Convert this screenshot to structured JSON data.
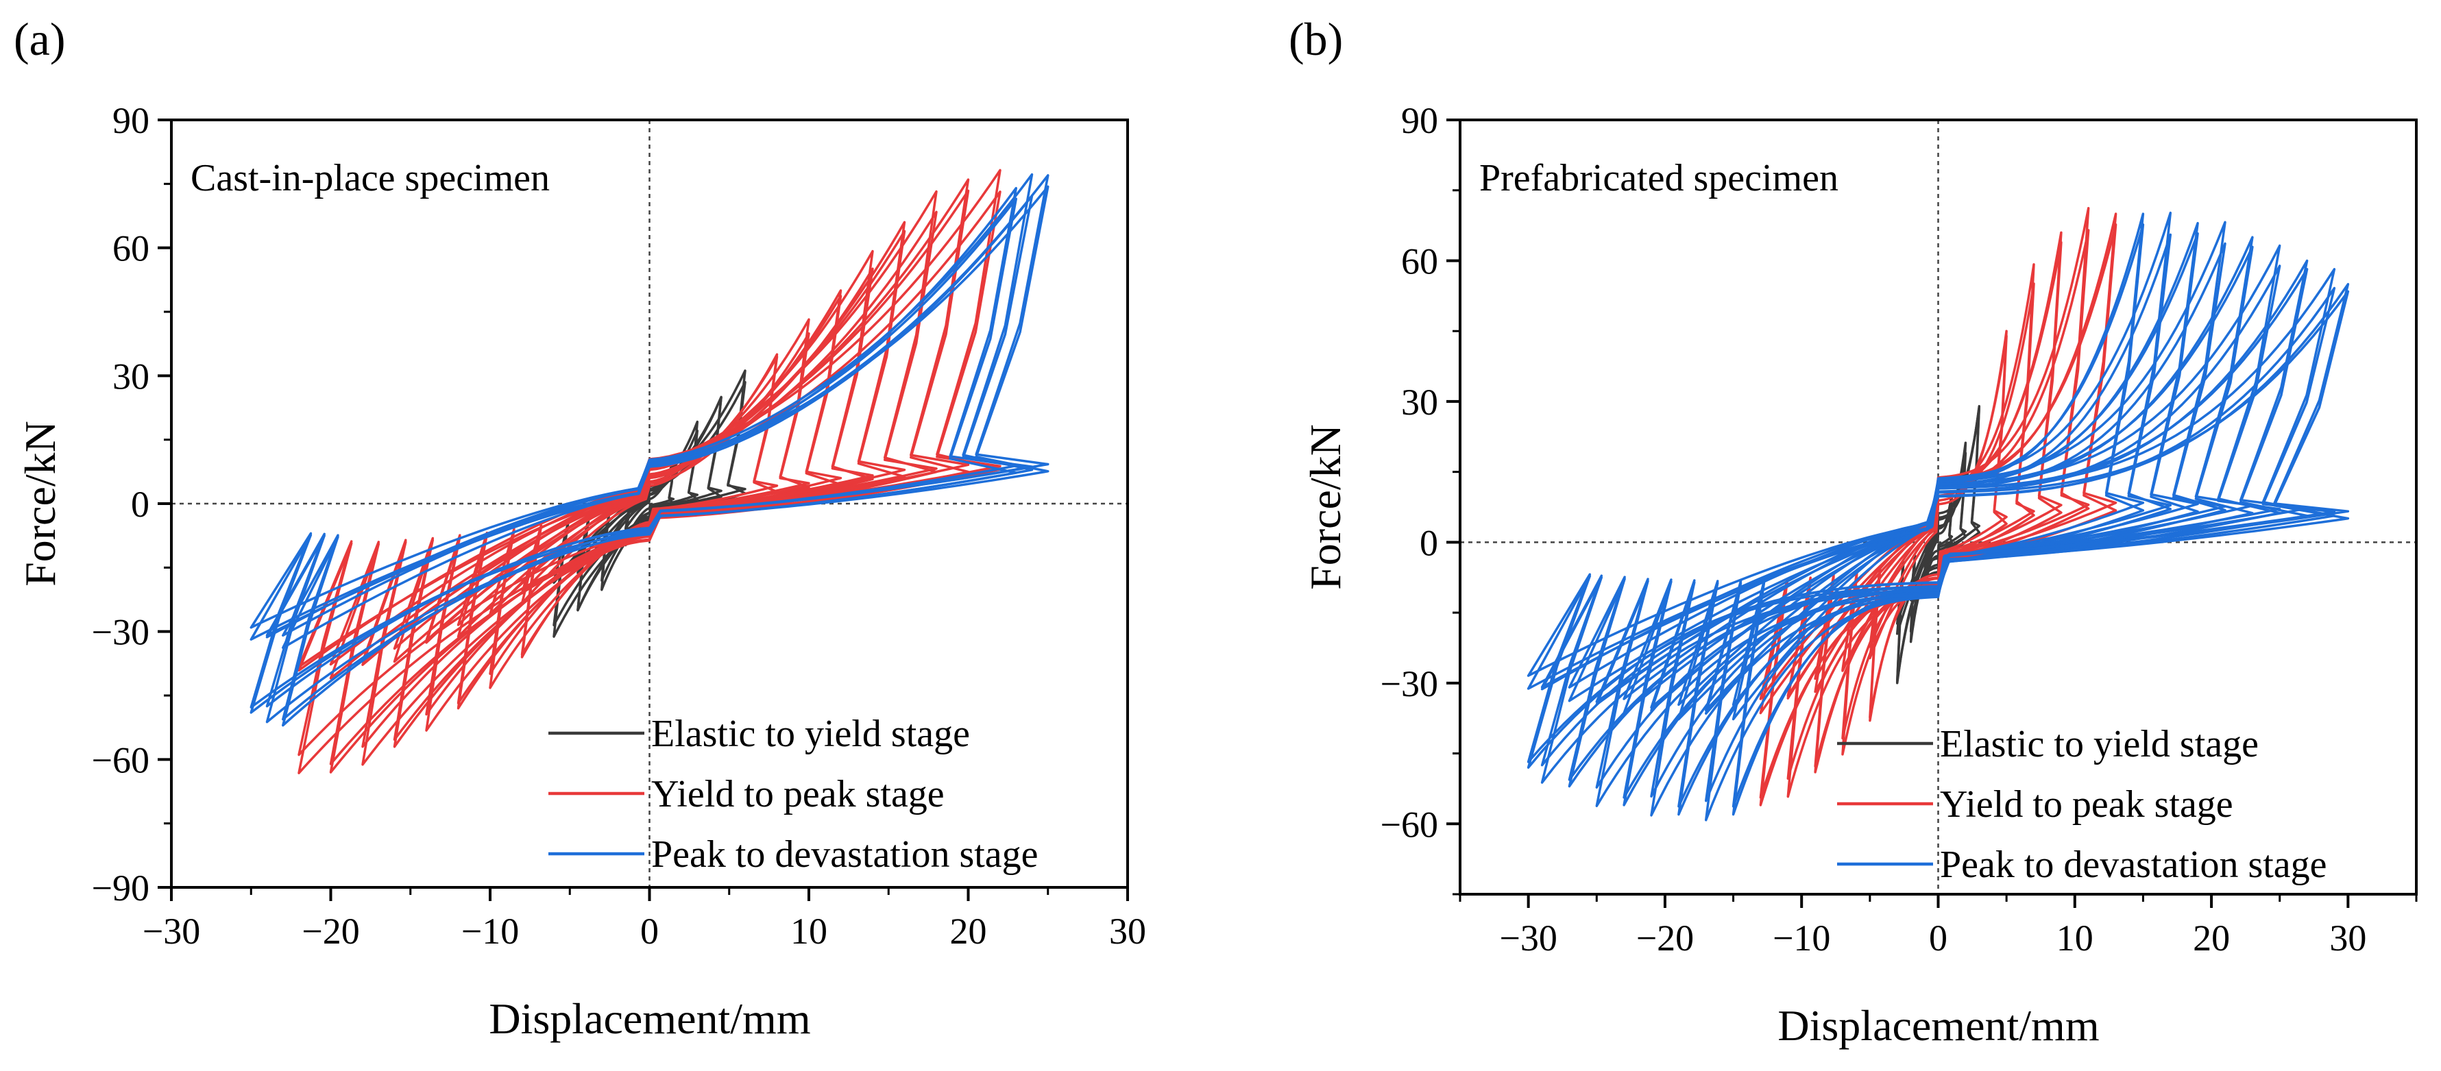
{
  "figure": {
    "panels": [
      "(a)",
      "(b)"
    ]
  },
  "chart_data": [
    {
      "type": "line",
      "panel_label": "(a)",
      "annotation": "Cast-in-place specimen",
      "xlabel": "Displacement/mm",
      "ylabel": "Force/kN",
      "xlim": [
        -30,
        30
      ],
      "ylim": [
        -90,
        90
      ],
      "xticks": [
        -30,
        -20,
        -10,
        0,
        10,
        20,
        30
      ],
      "xtick_labels": [
        "−30",
        "−20",
        "−10",
        "0",
        "10",
        "20",
        "30"
      ],
      "yticks": [
        -90,
        -60,
        -30,
        0,
        30,
        60,
        90
      ],
      "ytick_labels": [
        "−90",
        "−60",
        "−30",
        "0",
        "30",
        "60",
        "90"
      ],
      "zero_lines": true,
      "legend_position": "bottom-right",
      "series": [
        {
          "name": "Elastic to yield stage",
          "color": "#3a3a3a",
          "cycles": [
            {
              "d": 1.5,
              "fp": 9,
              "fn": -9
            },
            {
              "d": 3.0,
              "fp": 18,
              "fn": -19
            },
            {
              "d": 4.5,
              "fp": 25,
              "fn": -25
            },
            {
              "d": 6.0,
              "fp": 30,
              "fn": -30
            }
          ]
        },
        {
          "name": "Yield to peak stage",
          "color": "#e8393a",
          "cycles": [
            {
              "d": 8,
              "fp": 35,
              "fn": -36
            },
            {
              "d": 10,
              "fp": 42,
              "fn": -42
            },
            {
              "d": 12,
              "fp": 50,
              "fn": -48
            },
            {
              "d": 14,
              "fp": 58,
              "fn": -52
            },
            {
              "d": 16,
              "fp": 66,
              "fn": -57
            },
            {
              "d": 18,
              "fp": 72,
              "fn": -60
            },
            {
              "d": 20,
              "fp": 76,
              "fn": -63
            },
            {
              "d": 22,
              "fp": 77,
              "fn": -62
            }
          ]
        },
        {
          "name": "Peak to devastation stage",
          "color": "#1e6fd9",
          "cycles": [
            {
              "d": 23,
              "fp": 74,
              "fn": -52
            },
            {
              "d": 24,
              "fp": 76,
              "fn": -50
            },
            {
              "d": 25,
              "fp": 77,
              "fn": -49
            }
          ]
        }
      ]
    },
    {
      "type": "line",
      "panel_label": "(b)",
      "annotation": "Prefabricated specimen",
      "xlabel": "Displacement/mm",
      "ylabel": "Force/kN",
      "xlim": [
        -35,
        35
      ],
      "ylim": [
        -75,
        90
      ],
      "xticks": [
        -30,
        -20,
        -10,
        0,
        10,
        20,
        30
      ],
      "xtick_labels": [
        "−30",
        "−20",
        "−10",
        "0",
        "10",
        "20",
        "30"
      ],
      "yticks": [
        -60,
        -30,
        0,
        30,
        60,
        90
      ],
      "ytick_labels": [
        "−60",
        "−30",
        "0",
        "30",
        "60",
        "90"
      ],
      "zero_lines": true,
      "legend_position": "bottom-right",
      "series": [
        {
          "name": "Elastic to yield stage",
          "color": "#3a3a3a",
          "cycles": [
            {
              "d": 1.0,
              "fp": 10,
              "fn": -10
            },
            {
              "d": 2.0,
              "fp": 20,
              "fn": -20
            },
            {
              "d": 3.0,
              "fp": 29,
              "fn": -30
            }
          ]
        },
        {
          "name": "Yield to peak stage",
          "color": "#e8393a",
          "cycles": [
            {
              "d": 5,
              "fp": 45,
              "fn": -38
            },
            {
              "d": 7,
              "fp": 58,
              "fn": -44
            },
            {
              "d": 9,
              "fp": 66,
              "fn": -49
            },
            {
              "d": 11,
              "fp": 70,
              "fn": -53
            },
            {
              "d": 13,
              "fp": 70,
              "fn": -56
            }
          ]
        },
        {
          "name": "Peak to devastation stage",
          "color": "#1e6fd9",
          "cycles": [
            {
              "d": 15,
              "fp": 70,
              "fn": -58
            },
            {
              "d": 17,
              "fp": 69,
              "fn": -58
            },
            {
              "d": 19,
              "fp": 68,
              "fn": -58
            },
            {
              "d": 21,
              "fp": 67,
              "fn": -57
            },
            {
              "d": 23,
              "fp": 65,
              "fn": -56
            },
            {
              "d": 25,
              "fp": 62,
              "fn": -55
            },
            {
              "d": 27,
              "fp": 60,
              "fn": -52
            },
            {
              "d": 29,
              "fp": 57,
              "fn": -50
            },
            {
              "d": 30,
              "fp": 55,
              "fn": -48
            }
          ]
        }
      ]
    }
  ]
}
